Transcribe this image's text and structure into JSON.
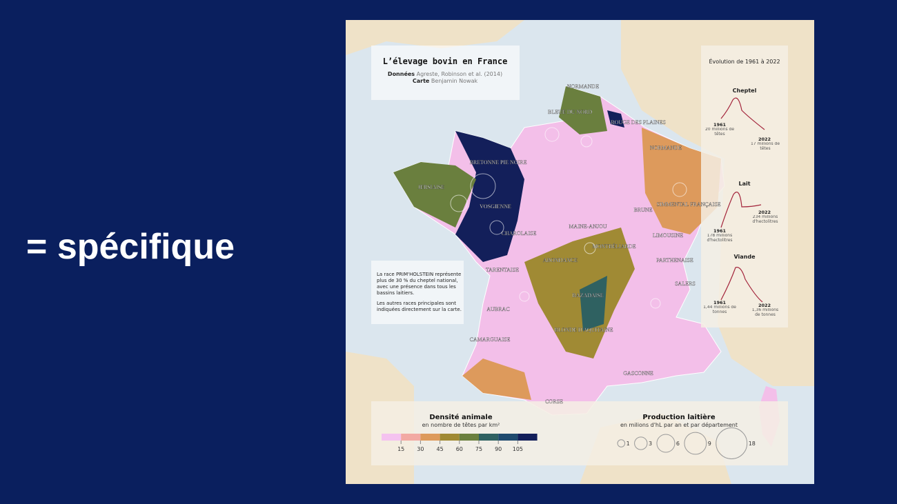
{
  "slide": {
    "text": "= spécifique"
  },
  "map": {
    "title": "L’élevage bovin en France",
    "credits": [
      {
        "label": "Données",
        "value": "Agreste, Robinson et al. (2014)"
      },
      {
        "label": "Carte",
        "value": "Benjamin Nowak"
      }
    ],
    "note": [
      "La race PRIM'HOLSTEIN représente plus de 30 % du cheptel national, avec une présence dans tous les bassins laitiers.",
      "Les autres races principales sont indiquées directement sur la carte."
    ],
    "breeds": [
      "NORMANDE",
      "BLEUE DU NORD",
      "ROUGE DES PLAINES",
      "NORMANDE",
      "BRETONNE PIE NOIRE",
      "JERSIAISE",
      "VOSGIENNE",
      "SIMMENTAL FRANÇAISE",
      "BRUNE",
      "MAINE-ANJOU",
      "CHAROLAISE",
      "MONTBÉLIARDE",
      "LIMOUSINE",
      "ABONDANCE",
      "PARTHENAISE",
      "TARENTAISE",
      "SALERS",
      "BAZADAISE",
      "AUBRAC",
      "BLONDE D'AQUITAINE",
      "CAMARGUAISE",
      "GASCONNE",
      "CORSE"
    ],
    "evolution": {
      "title": "Évolution de 1961 à 2022",
      "panels": [
        {
          "title": "Cheptel",
          "start_year": "1961",
          "start_text": "20 millions de têtes",
          "end_year": "2022",
          "end_text": "17 millions de têtes"
        },
        {
          "title": "Lait",
          "start_year": "1961",
          "start_text": "178 millions d'hectolitres",
          "end_year": "2022",
          "end_text": "234 millions d'hectolitres"
        },
        {
          "title": "Viande",
          "start_year": "1961",
          "start_text": "1,44 millions de tonnes",
          "end_year": "2022",
          "end_text": "1,36 millions de tonnes"
        }
      ]
    },
    "density_legend": {
      "title": "Densité animale",
      "subtitle": "en nombre de têtes par km²",
      "ticks": [
        15,
        30,
        45,
        60,
        75,
        90,
        105
      ],
      "colors": [
        "#f4c2ef",
        "#f2a9a3",
        "#dd9a5c",
        "#a08a34",
        "#6a7f3e",
        "#2f6161",
        "#1f4a6e",
        "#131f5a"
      ]
    },
    "milk_legend": {
      "title": "Production laitière",
      "subtitle": "en milions d'hL par an et par département",
      "sizes": [
        1,
        3,
        6,
        9,
        18
      ]
    }
  }
}
